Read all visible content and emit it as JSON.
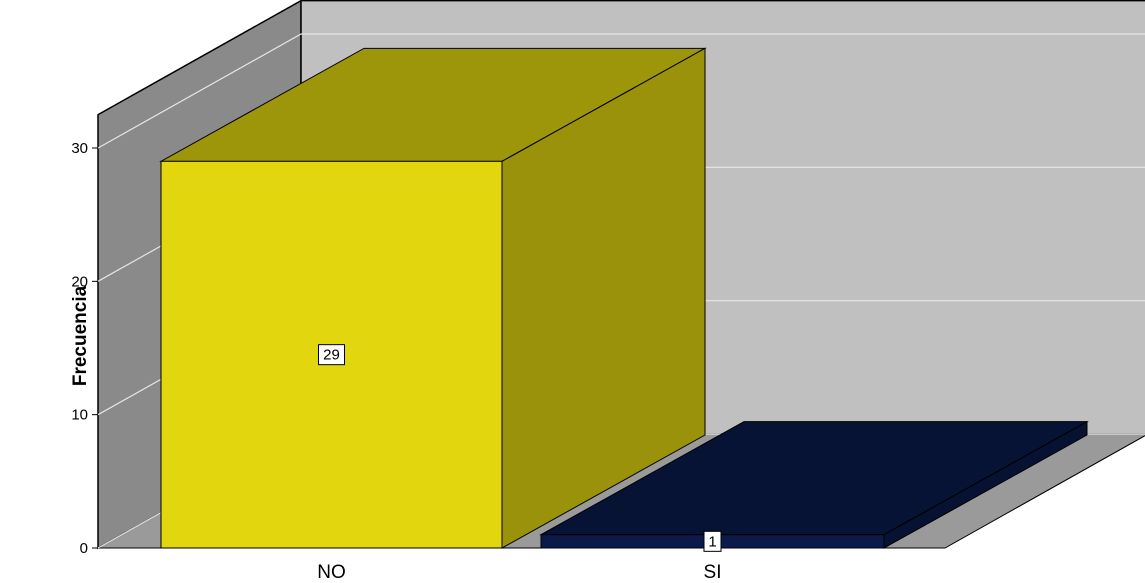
{
  "chart_data": {
    "type": "bar",
    "style": "3d",
    "categories": [
      "NO",
      "SI"
    ],
    "values": [
      29,
      1
    ],
    "data_labels": [
      "29",
      "1"
    ],
    "title": "",
    "xlabel": "",
    "ylabel": "Frecuencia",
    "ylim": [
      0,
      30
    ],
    "yticks": [
      "0",
      "10",
      "20",
      "30"
    ],
    "grid": true,
    "legend": "none",
    "colors": {
      "bars": [
        "#E2D60E",
        "#0A1B4B"
      ],
      "back_wall": "#C0C0C0",
      "side_wall": "#8A8A8A",
      "floor": "#9A9A9A"
    }
  }
}
